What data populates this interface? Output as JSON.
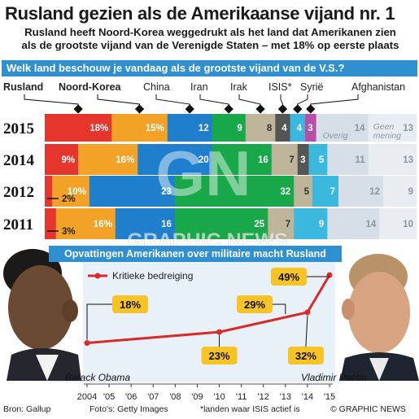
{
  "header": {
    "title": "Rusland gezien als de Amerikaanse vijand nr. 1",
    "subtitle_line1": "Rusland heeft Noord-Korea weggedrukt als het land dat Amerikanen zien",
    "subtitle_line2": "als de grootste vijand van de Verenigde Staten – met 18% op eerste plaats"
  },
  "question": "Welk land beschouw je vandaag als de grootste vijand van de V.S.?",
  "watermark": "GRAPHIC NEWS",
  "colors": {
    "rusland": "#e5352d",
    "noord_korea": "#f2a227",
    "china": "#1f7fcc",
    "iran": "#18a84a",
    "irak": "#bdb49a",
    "isis": "#555555",
    "isis_highlight": "#b84fa6",
    "syrie": "#3bb8de",
    "overig": "#dde3ea",
    "header_blue": "#2f8fcf",
    "line_red": "#d92a2a",
    "callout_yellow": "#f7c325"
  },
  "chart_data": [
    {
      "type": "bar",
      "orientation": "horizontal-stacked",
      "title": "Welk land beschouw je vandaag als de grootste vijand van de V.S.?",
      "categories": [
        "2015",
        "2014",
        "2012",
        "2011"
      ],
      "series": [
        {
          "name": "Rusland",
          "values": [
            18,
            9,
            2,
            3
          ]
        },
        {
          "name": "Noord-Korea",
          "values": [
            15,
            16,
            10,
            16
          ]
        },
        {
          "name": "China",
          "values": [
            12,
            20,
            23,
            16
          ]
        },
        {
          "name": "Iran",
          "values": [
            9,
            16,
            32,
            25
          ]
        },
        {
          "name": "Irak",
          "values": [
            8,
            7,
            5,
            7
          ]
        },
        {
          "name": "ISIS*",
          "values": [
            4,
            3,
            0,
            0
          ]
        },
        {
          "name": "Syrië",
          "values": [
            4,
            5,
            7,
            9
          ]
        },
        {
          "name": "Afghanistan",
          "values": [
            3,
            0,
            0,
            0
          ]
        },
        {
          "name": "Overig",
          "values": [
            14,
            11,
            12,
            14
          ]
        },
        {
          "name": "Geen mening",
          "values": [
            13,
            13,
            9,
            10
          ]
        }
      ],
      "legend": "top",
      "notes": {
        "overig_label": "Overig",
        "geen_mening_label": "Geen mening"
      }
    },
    {
      "type": "line",
      "title": "Opvattingen Amerikanen over militaire macht Rusland",
      "series": [
        {
          "name": "Kritieke bedreiging",
          "x": [
            2004,
            2010,
            2014,
            2015
          ],
          "y": [
            18,
            23,
            32,
            49
          ]
        }
      ],
      "x_ticks": [
        "2004",
        "'05",
        "'06",
        "'07",
        "'08",
        "'09",
        "'10",
        "'11",
        "'12",
        "'13",
        "'14",
        "'15"
      ],
      "callouts": [
        "18%",
        "23%",
        "29%",
        "32%",
        "49%"
      ],
      "callout_29_year": 2013,
      "ylim": [
        0,
        55
      ],
      "legend": "top-left"
    }
  ],
  "people": {
    "left": "Barack Obama",
    "right": "Vladimir Poetin"
  },
  "footer": {
    "source": "Bron: Gallup",
    "photos": "Foto's: Getty Images",
    "note": "*landen waar ISIS actief is",
    "credit": "© GRAPHIC NEWS"
  }
}
